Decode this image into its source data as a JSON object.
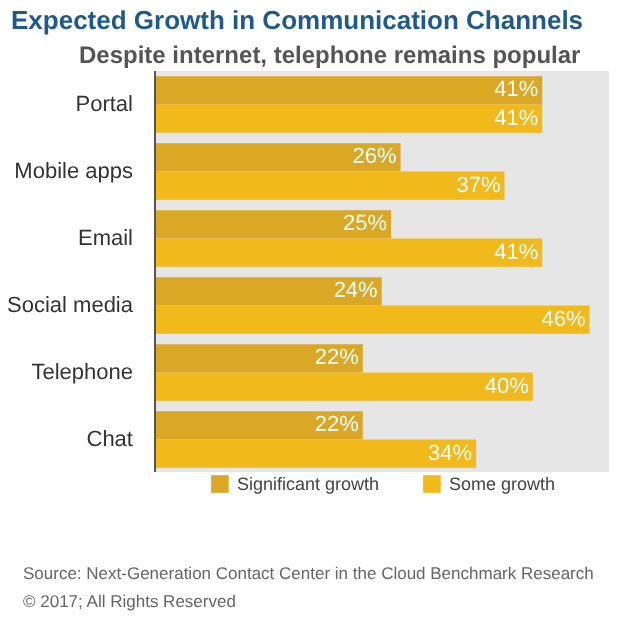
{
  "chart_data": {
    "type": "bar",
    "orientation": "horizontal",
    "title": "Expected Growth in Communication Channels",
    "subtitle": "Despite internet, telephone remains popular",
    "categories": [
      "Portal",
      "Mobile apps",
      "Email",
      "Social media",
      "Telephone",
      "Chat"
    ],
    "series": [
      {
        "name": "Significant growth",
        "color": "#dba826",
        "values": [
          41,
          26,
          25,
          24,
          22,
          22
        ],
        "value_labels": [
          "41%",
          "26%",
          "25%",
          "24%",
          "22%",
          "22%"
        ]
      },
      {
        "name": "Some growth",
        "color": "#f1b91a",
        "values": [
          41,
          37,
          41,
          46,
          40,
          34
        ],
        "value_labels": [
          "41%",
          "37%",
          "41%",
          "46%",
          "40%",
          "34%"
        ]
      }
    ],
    "legend": "bottom",
    "tick_labels": "y",
    "annotations": [
      "Source: Next-Generation Contact Center in the Cloud Benchmark Research",
      "© 2017; All Rights Reserved"
    ]
  }
}
